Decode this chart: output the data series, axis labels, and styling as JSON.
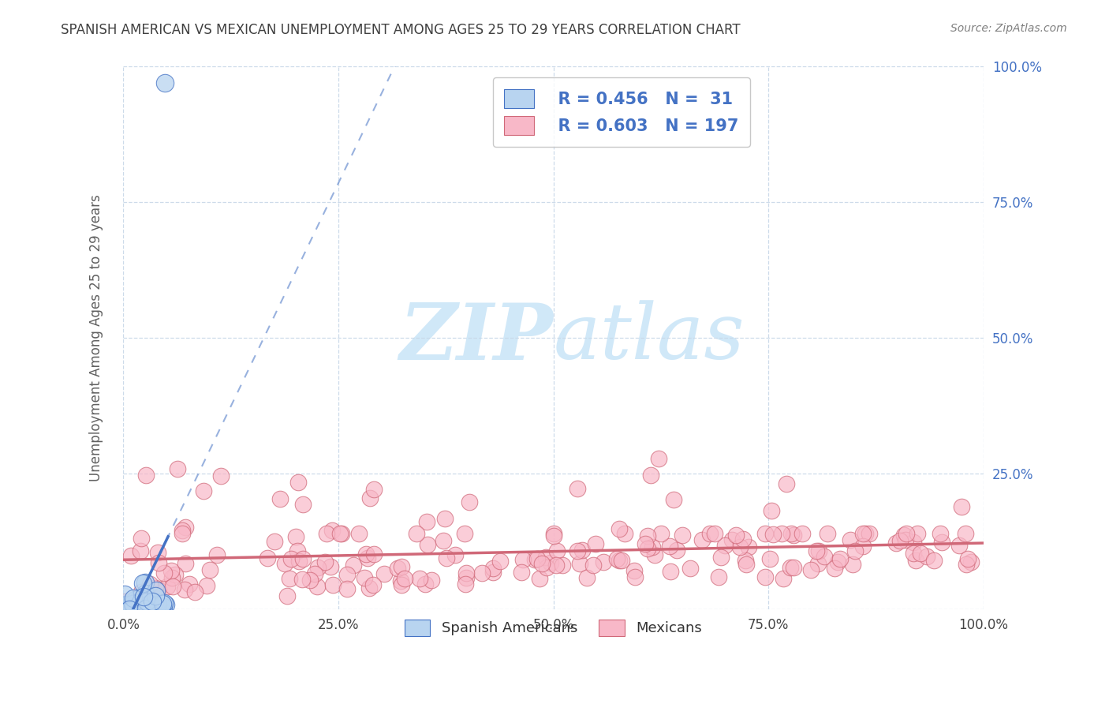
{
  "title": "SPANISH AMERICAN VS MEXICAN UNEMPLOYMENT AMONG AGES 25 TO 29 YEARS CORRELATION CHART",
  "source": "Source: ZipAtlas.com",
  "ylabel": "Unemployment Among Ages 25 to 29 years",
  "xlim": [
    0,
    1.0
  ],
  "ylim": [
    0,
    1.0
  ],
  "xticks": [
    0.0,
    0.25,
    0.5,
    0.75,
    1.0
  ],
  "xtick_labels": [
    "0.0%",
    "25.0%",
    "50.0%",
    "75.0%",
    "100.0%"
  ],
  "ytick_vals": [
    0.0,
    0.25,
    0.5,
    0.75,
    1.0
  ],
  "ytick_labels": [
    "",
    "25.0%",
    "50.0%",
    "75.0%",
    "100.0%"
  ],
  "series1_label": "Spanish Americans",
  "series1_R": 0.456,
  "series1_N": 31,
  "series1_face": "#b8d4f0",
  "series1_edge": "#4472c4",
  "series2_label": "Mexicans",
  "series2_R": 0.603,
  "series2_N": 197,
  "series2_face": "#f8b8c8",
  "series2_edge": "#d06878",
  "tick_color": "#4472c4",
  "grid_color": "#c8d8e8",
  "watermark_color": "#d0e8f8",
  "background": "#ffffff",
  "title_color": "#404040",
  "source_color": "#808080",
  "ylabel_color": "#606060"
}
